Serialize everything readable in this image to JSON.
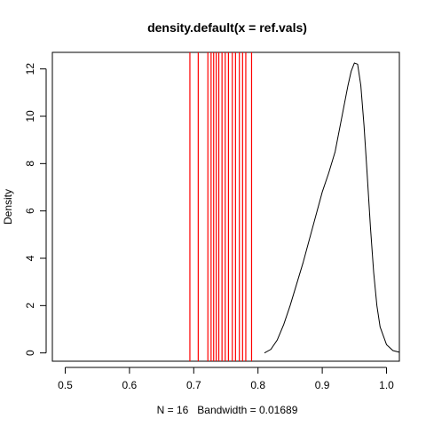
{
  "chart_data": {
    "type": "line",
    "title": "density.default(x = ref.vals)",
    "xlabel": "N = 16   Bandwidth = 0.01689",
    "ylabel": "Density",
    "xlim": [
      0.48,
      1.02
    ],
    "ylim": [
      -0.35,
      12.7
    ],
    "x_ticks": [
      0.5,
      0.6,
      0.7,
      0.8,
      0.9,
      1.0
    ],
    "x_tick_labels": [
      "0.5",
      "0.6",
      "0.7",
      "0.8",
      "0.9",
      "1.0"
    ],
    "y_ticks": [
      0,
      2,
      4,
      6,
      8,
      10,
      12
    ],
    "y_tick_labels": [
      "0",
      "2",
      "4",
      "6",
      "8",
      "10",
      "12"
    ],
    "grid": false,
    "series": [
      {
        "color": "#000000",
        "x": [
          0.81,
          0.82,
          0.83,
          0.84,
          0.85,
          0.86,
          0.87,
          0.88,
          0.89,
          0.9,
          0.91,
          0.92,
          0.93,
          0.94,
          0.945,
          0.95,
          0.955,
          0.96,
          0.965,
          0.97,
          0.975,
          0.98,
          0.985,
          0.99,
          1.0,
          1.01,
          1.02
        ],
        "y": [
          0.0,
          0.15,
          0.55,
          1.2,
          2.0,
          2.9,
          3.8,
          4.8,
          5.8,
          6.8,
          7.6,
          8.5,
          9.9,
          11.3,
          11.9,
          12.25,
          12.2,
          11.3,
          9.6,
          7.5,
          5.3,
          3.4,
          2.0,
          1.1,
          0.35,
          0.1,
          0.03
        ]
      }
    ],
    "rug": {
      "color": "#ff0000",
      "values": [
        0.694,
        0.707,
        0.722,
        0.727,
        0.731,
        0.735,
        0.739,
        0.744,
        0.749,
        0.754,
        0.76,
        0.765,
        0.771,
        0.776,
        0.781,
        0.79
      ]
    }
  }
}
